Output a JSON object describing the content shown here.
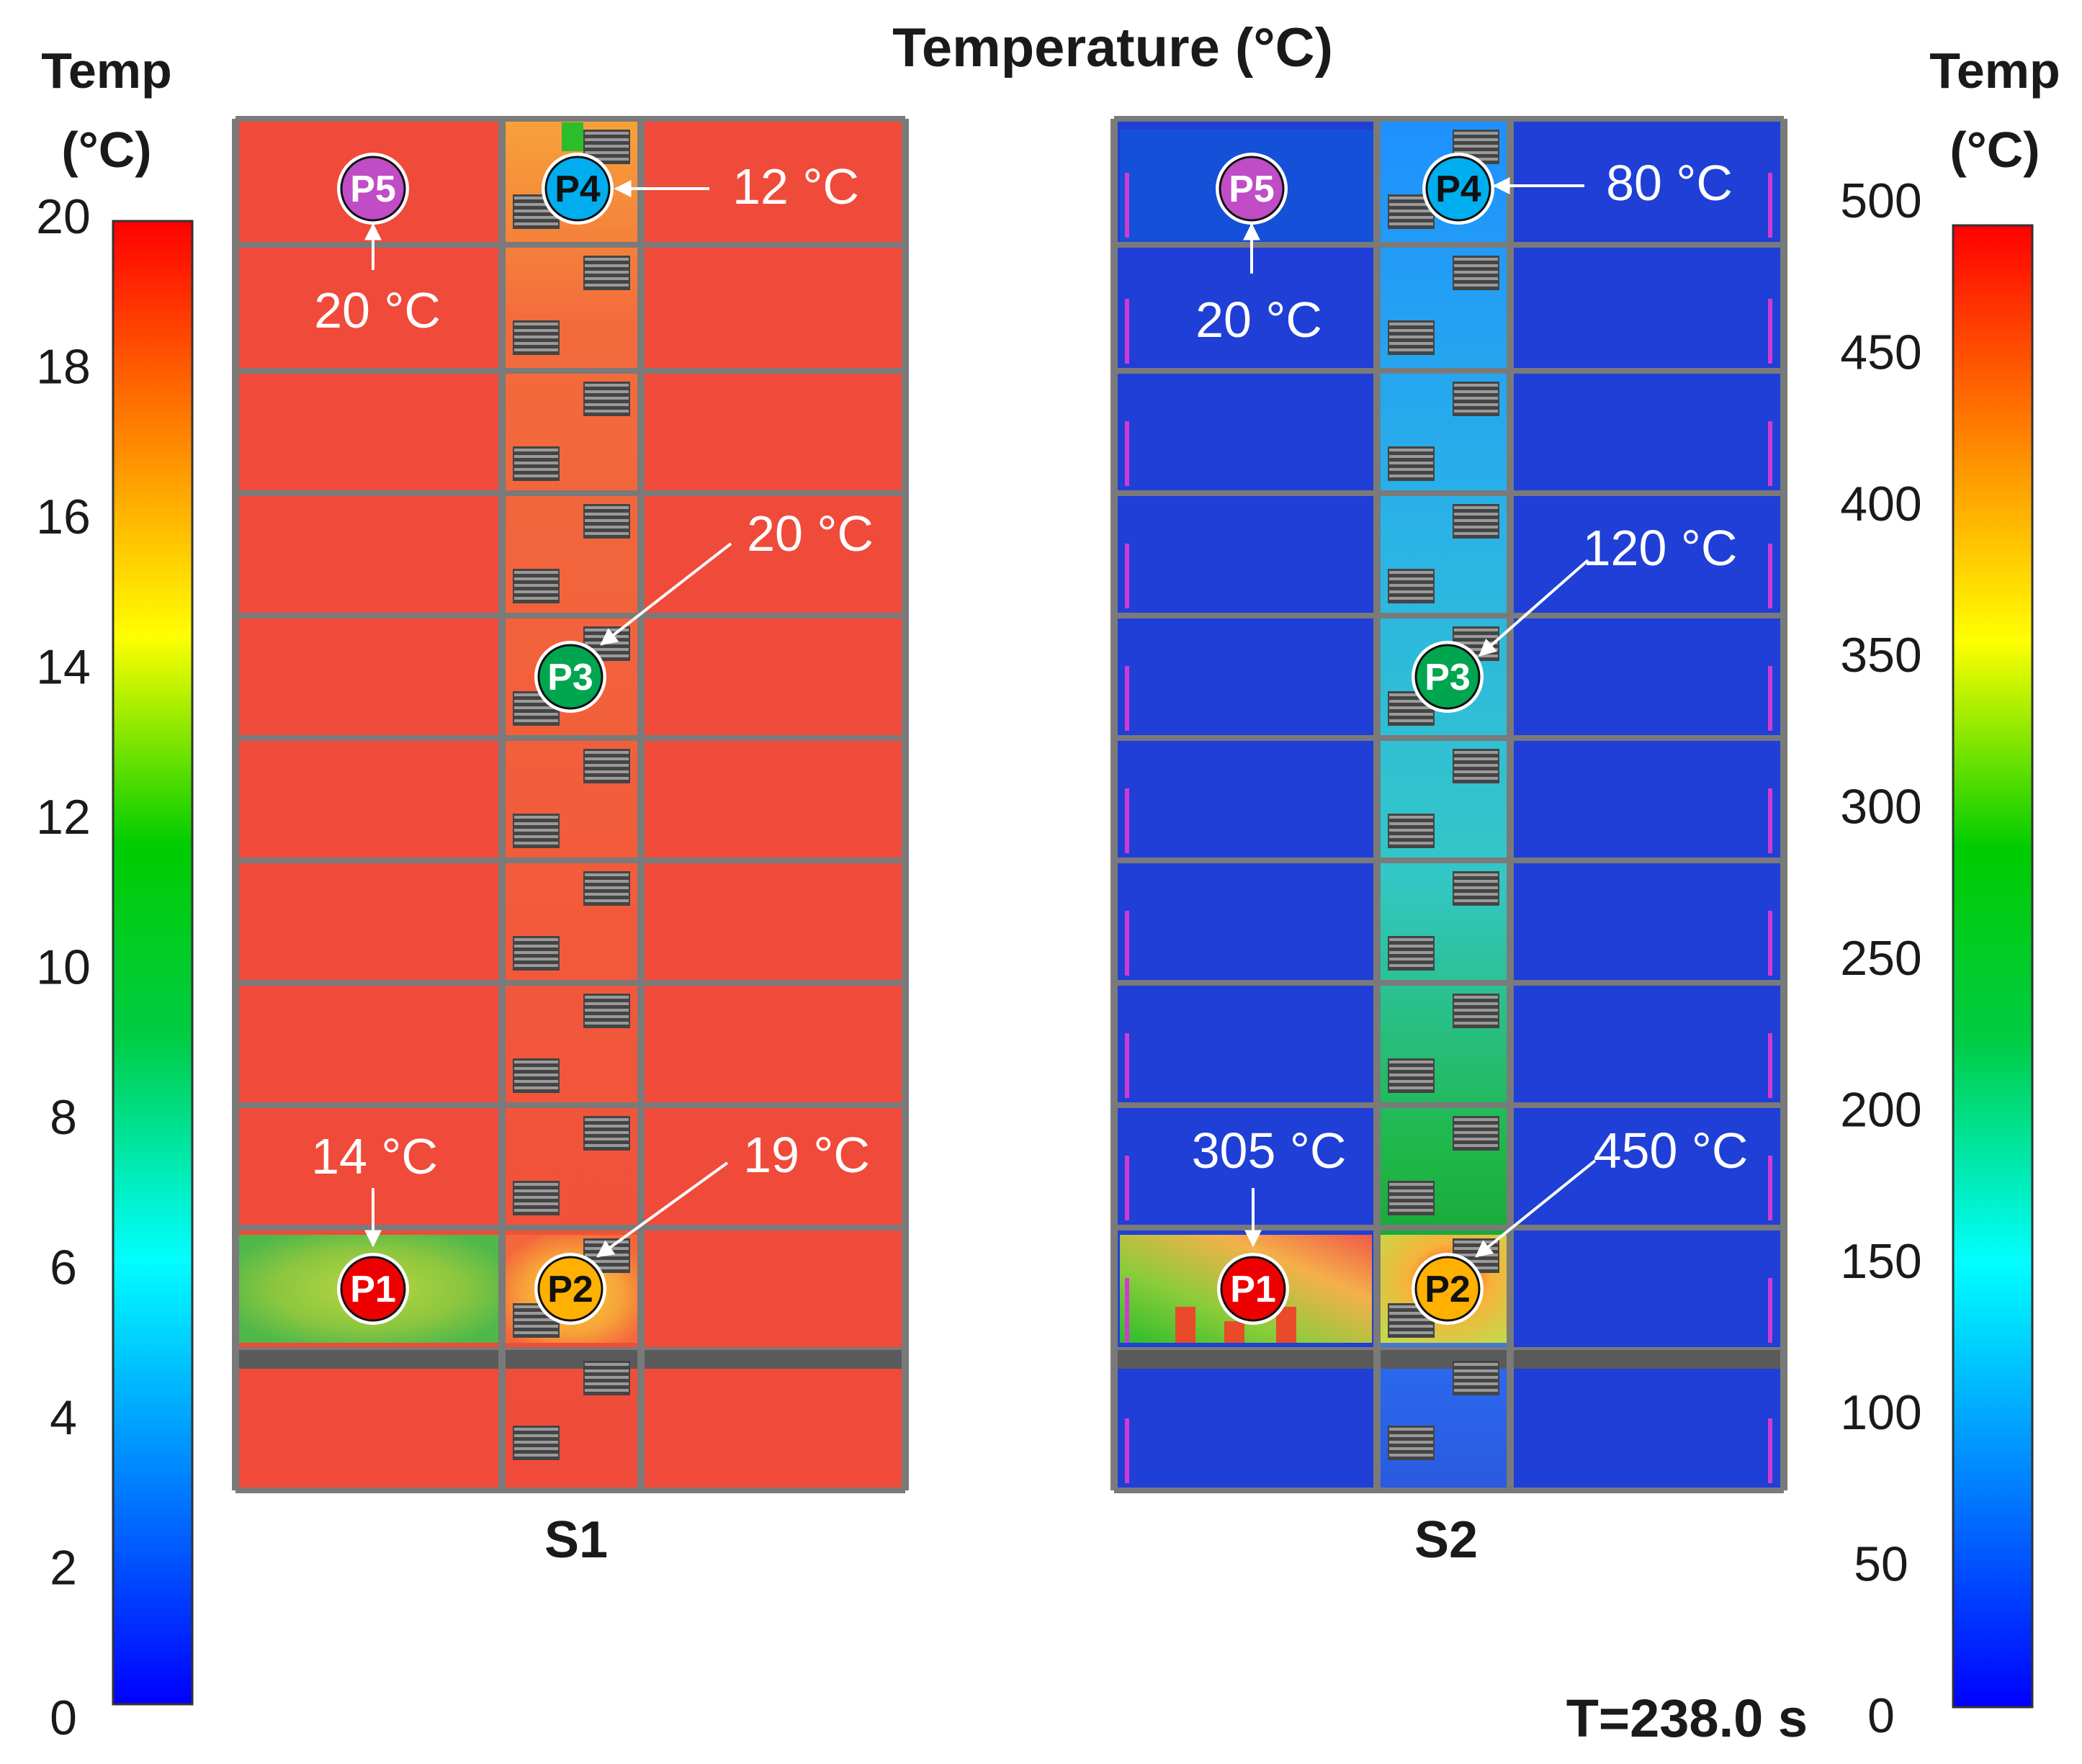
{
  "title": "Temperature (°C)",
  "time_label": "T=238.0 s",
  "colorbar_left": {
    "title_line1": "Temp",
    "title_line2": "(°C)",
    "ticks": [
      "0",
      "2",
      "4",
      "6",
      "8",
      "10",
      "12",
      "14",
      "16",
      "18",
      "20"
    ],
    "min": 0,
    "max": 20
  },
  "colorbar_right": {
    "title_line1": "Temp",
    "title_line2": "(°C)",
    "ticks": [
      "0",
      "50",
      "100",
      "150",
      "200",
      "250",
      "300",
      "350",
      "400",
      "450",
      "500"
    ],
    "min": 0,
    "max": 500
  },
  "colormap": [
    "#0000ff",
    "#0080ff",
    "#00ffff",
    "#00cc44",
    "#00cc00",
    "#ffff00",
    "#ff8000",
    "#ff0000"
  ],
  "scenarios": [
    {
      "label": "S1",
      "points": [
        {
          "id": "P1",
          "name": "P1",
          "color": "#ee0000",
          "annotation": "14 °C"
        },
        {
          "id": "P2",
          "name": "P2",
          "color": "#ffb000",
          "annotation": "19 °C"
        },
        {
          "id": "P3",
          "name": "P3",
          "color": "#00a550",
          "annotation": "20 °C"
        },
        {
          "id": "P4",
          "name": "P4",
          "color": "#00aeef",
          "annotation": "12 °C"
        },
        {
          "id": "P5",
          "name": "P5",
          "color": "#c04cc6",
          "annotation": "20 °C"
        }
      ]
    },
    {
      "label": "S2",
      "points": [
        {
          "id": "P1",
          "name": "P1",
          "color": "#ee0000",
          "annotation": "305 °C"
        },
        {
          "id": "P2",
          "name": "P2",
          "color": "#ffb000",
          "annotation": "450 °C"
        },
        {
          "id": "P3",
          "name": "P3",
          "color": "#00a550",
          "annotation": "120 °C"
        },
        {
          "id": "P4",
          "name": "P4",
          "color": "#00aeef",
          "annotation": "80 °C"
        },
        {
          "id": "P5",
          "name": "P5",
          "color": "#c04cc6",
          "annotation": "20 °C"
        }
      ]
    }
  ]
}
